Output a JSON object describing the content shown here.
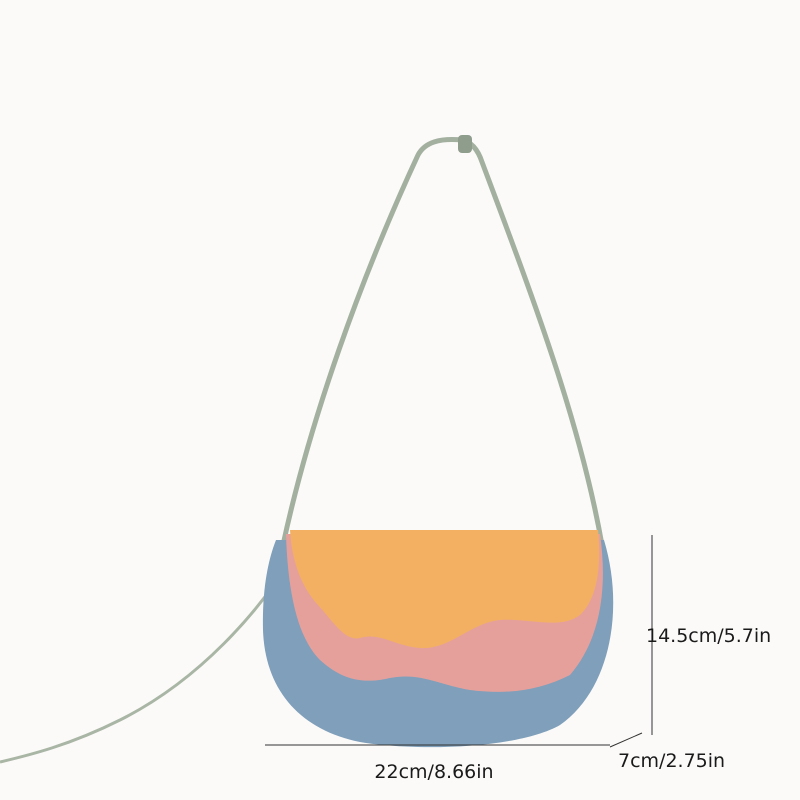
{
  "dimensions": {
    "height": "14.5cm/5.7in",
    "width": "22cm/8.66in",
    "depth": "7cm/2.75in"
  }
}
